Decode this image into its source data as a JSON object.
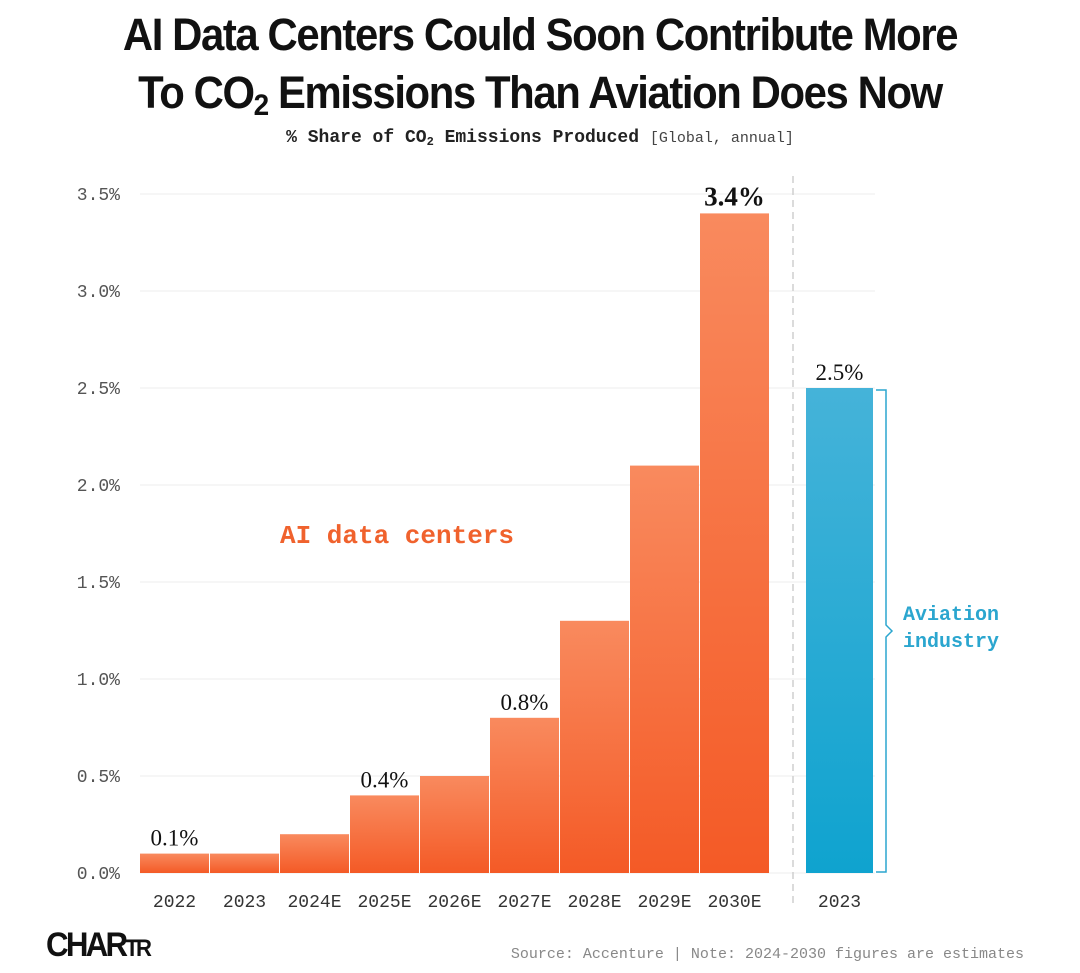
{
  "header": {
    "title_line1": "AI Data Centers Could Soon Contribute More",
    "title_line2_pre": "To CO",
    "title_line2_sub": "2",
    "title_line2_post": " Emissions Than Aviation Does Now",
    "subtitle_pre": "% Share of CO",
    "subtitle_sub": "2",
    "subtitle_post": " Emissions Produced",
    "subtitle_note": "[Global, annual]"
  },
  "colors": {
    "ai_top": "#F98A5E",
    "ai_bottom": "#F45A26",
    "aviation_top": "#45B3D9",
    "aviation_bottom": "#0FA3CF",
    "grid": "#EDEDED"
  },
  "chart_data": {
    "type": "bar",
    "ylim": [
      0,
      3.5
    ],
    "yticks": [
      "0.0%",
      "0.5%",
      "1.0%",
      "1.5%",
      "2.0%",
      "2.5%",
      "3.0%",
      "3.5%"
    ],
    "grid": true,
    "series": [
      {
        "name": "AI data centers",
        "categories": [
          "2022",
          "2023",
          "2024E",
          "2025E",
          "2026E",
          "2027E",
          "2028E",
          "2029E",
          "2030E"
        ],
        "values": [
          0.1,
          0.1,
          0.2,
          0.4,
          0.5,
          0.8,
          1.3,
          2.1,
          3.4
        ],
        "data_labels": [
          "0.1%",
          "",
          "",
          "0.4%",
          "",
          "0.8%",
          "",
          "",
          "3.4%"
        ]
      },
      {
        "name": "Aviation industry",
        "name_line1": "Aviation",
        "name_line2": "industry",
        "categories": [
          "2023"
        ],
        "values": [
          2.5
        ],
        "data_labels": [
          "2.5%"
        ]
      }
    ]
  },
  "footer": {
    "logo_main": "CHAR",
    "logo_small": "TR",
    "source": "Source: Accenture | Note: 2024-2030 figures are estimates"
  }
}
